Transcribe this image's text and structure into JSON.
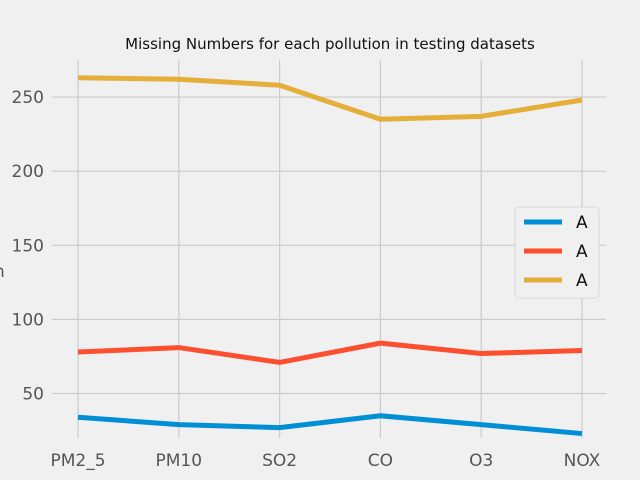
{
  "chart_data": {
    "type": "line",
    "title": "Missing Numbers for each pollution in testing datasets",
    "xlabel": "",
    "ylabel": "n",
    "categories": [
      "PM2_5",
      "PM10",
      "SO2",
      "CO",
      "O3",
      "NOX"
    ],
    "ylim": [
      20,
      275
    ],
    "yticks": [
      50,
      100,
      150,
      200,
      250
    ],
    "grid": true,
    "legend_position": "right",
    "series": [
      {
        "name": "A",
        "color": "#008fd5",
        "values": [
          34,
          29,
          27,
          35,
          29,
          23
        ]
      },
      {
        "name": "A",
        "color": "#fc4f30",
        "values": [
          78,
          81,
          71,
          84,
          77,
          79
        ]
      },
      {
        "name": "A",
        "color": "#e5ae38",
        "values": [
          263,
          262,
          258,
          235,
          237,
          248
        ]
      }
    ]
  }
}
